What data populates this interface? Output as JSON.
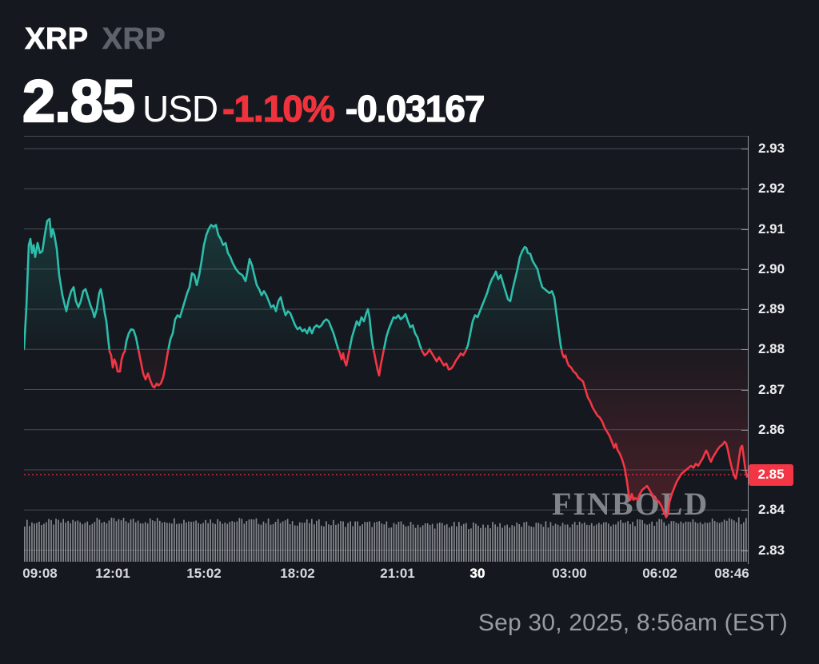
{
  "header": {
    "ticker": "XRP",
    "ticker_secondary": "XRP",
    "price": "2.85",
    "currency": "USD",
    "change_percent": "-1.10%",
    "change_absolute": "-0.03167",
    "change_color": "#f0323d"
  },
  "watermark": "FINBOLD",
  "footer": {
    "timestamp": "Sep 30, 2025, 8:56am (EST)"
  },
  "chart_data": {
    "type": "line",
    "subtype": "baseline-area",
    "title": "XRP/USD intraday price",
    "baseline_value": 2.88,
    "ylim": [
      2.8267,
      2.9332
    ],
    "grid": true,
    "y_axis_side": "right",
    "y_ticks": [
      2.93,
      2.92,
      2.91,
      2.9,
      2.89,
      2.88,
      2.87,
      2.86,
      2.85,
      2.84,
      2.83
    ],
    "x_ticks": [
      {
        "label": "09:08",
        "pos": 20,
        "emphasis": false
      },
      {
        "label": "12:01",
        "pos": 111,
        "emphasis": false
      },
      {
        "label": "15:02",
        "pos": 225,
        "emphasis": false
      },
      {
        "label": "18:02",
        "pos": 342,
        "emphasis": false
      },
      {
        "label": "21:01",
        "pos": 467,
        "emphasis": false
      },
      {
        "label": "30",
        "pos": 567,
        "emphasis": true
      },
      {
        "label": "03:00",
        "pos": 682,
        "emphasis": false
      },
      {
        "label": "06:02",
        "pos": 795,
        "emphasis": false
      },
      {
        "label": "08:46",
        "pos": 885,
        "emphasis": false
      }
    ],
    "current_price_value": 2.8488,
    "current_price_label": "2.85",
    "colors": {
      "up": "#2dbdab",
      "down": "#f23645",
      "grid": "#474c54",
      "axis": "#8f939a",
      "badge": "#f23645",
      "volume": "#c8cbd0",
      "watermark": "#94979c"
    },
    "volume_bar_count": 300,
    "points": [
      [
        0,
        2.88
      ],
      [
        3,
        2.8905
      ],
      [
        6,
        2.906
      ],
      [
        8,
        2.9075
      ],
      [
        10,
        2.904
      ],
      [
        12,
        2.906
      ],
      [
        14,
        2.903
      ],
      [
        17,
        2.9065
      ],
      [
        20,
        2.904
      ],
      [
        23,
        2.9045
      ],
      [
        26,
        2.9085
      ],
      [
        29,
        2.912
      ],
      [
        32,
        2.9125
      ],
      [
        34,
        2.908
      ],
      [
        36,
        2.91
      ],
      [
        38,
        2.9085
      ],
      [
        41,
        2.905
      ],
      [
        44,
        2.8985
      ],
      [
        48,
        2.8935
      ],
      [
        51,
        2.891
      ],
      [
        53,
        2.8895
      ],
      [
        56,
        2.8925
      ],
      [
        59,
        2.8945
      ],
      [
        62,
        2.8955
      ],
      [
        65,
        2.892
      ],
      [
        68,
        2.8905
      ],
      [
        71,
        2.892
      ],
      [
        74,
        2.8945
      ],
      [
        77,
        2.895
      ],
      [
        80,
        2.893
      ],
      [
        83,
        2.891
      ],
      [
        86,
        2.8895
      ],
      [
        88,
        2.888
      ],
      [
        91,
        2.89
      ],
      [
        94,
        2.894
      ],
      [
        96,
        2.895
      ],
      [
        99,
        2.892
      ],
      [
        101,
        2.889
      ],
      [
        103,
        2.887
      ],
      [
        105,
        2.883
      ],
      [
        107,
        2.8795
      ],
      [
        109,
        2.8785
      ],
      [
        111,
        2.8755
      ],
      [
        113,
        2.8775
      ],
      [
        115,
        2.8765
      ],
      [
        117,
        2.8745
      ],
      [
        120,
        2.8745
      ],
      [
        122,
        2.8775
      ],
      [
        124,
        2.8788
      ],
      [
        126,
        2.8795
      ],
      [
        128,
        2.882
      ],
      [
        131,
        2.884
      ],
      [
        134,
        2.885
      ],
      [
        137,
        2.8848
      ],
      [
        140,
        2.883
      ],
      [
        143,
        2.88
      ],
      [
        146,
        2.877
      ],
      [
        149,
        2.874
      ],
      [
        152,
        2.8725
      ],
      [
        155,
        2.874
      ],
      [
        158,
        2.8722
      ],
      [
        161,
        2.8708
      ],
      [
        163,
        2.8705
      ],
      [
        166,
        2.8715
      ],
      [
        168,
        2.871
      ],
      [
        171,
        2.8715
      ],
      [
        174,
        2.873
      ],
      [
        177,
        2.876
      ],
      [
        180,
        2.8795
      ],
      [
        183,
        2.8825
      ],
      [
        186,
        2.884
      ],
      [
        189,
        2.8875
      ],
      [
        192,
        2.8885
      ],
      [
        195,
        2.888
      ],
      [
        198,
        2.89
      ],
      [
        201,
        2.892
      ],
      [
        204,
        2.894
      ],
      [
        207,
        2.8955
      ],
      [
        210,
        2.899
      ],
      [
        213,
        2.8985
      ],
      [
        216,
        2.896
      ],
      [
        219,
        2.8985
      ],
      [
        222,
        2.902
      ],
      [
        225,
        2.906
      ],
      [
        228,
        2.9085
      ],
      [
        231,
        2.91
      ],
      [
        234,
        2.911
      ],
      [
        237,
        2.9105
      ],
      [
        240,
        2.911
      ],
      [
        243,
        2.9085
      ],
      [
        246,
        2.9075
      ],
      [
        249,
        2.906
      ],
      [
        252,
        2.9065
      ],
      [
        255,
        2.904
      ],
      [
        258,
        2.903
      ],
      [
        261,
        2.9015
      ],
      [
        265,
        2.9
      ],
      [
        269,
        2.899
      ],
      [
        273,
        2.8985
      ],
      [
        277,
        2.897
      ],
      [
        279,
        2.899
      ],
      [
        282,
        2.9025
      ],
      [
        285,
        2.901
      ],
      [
        288,
        2.8985
      ],
      [
        291,
        2.896
      ],
      [
        294,
        2.895
      ],
      [
        297,
        2.8935
      ],
      [
        300,
        2.8945
      ],
      [
        303,
        2.8935
      ],
      [
        306,
        2.892
      ],
      [
        309,
        2.8905
      ],
      [
        312,
        2.891
      ],
      [
        315,
        2.8895
      ],
      [
        318,
        2.892
      ],
      [
        321,
        2.893
      ],
      [
        324,
        2.8905
      ],
      [
        327,
        2.8885
      ],
      [
        330,
        2.8895
      ],
      [
        333,
        2.889
      ],
      [
        336,
        2.8875
      ],
      [
        339,
        2.886
      ],
      [
        342,
        2.885
      ],
      [
        345,
        2.8855
      ],
      [
        348,
        2.8845
      ],
      [
        351,
        2.885
      ],
      [
        354,
        2.884
      ],
      [
        357,
        2.8855
      ],
      [
        360,
        2.884
      ],
      [
        363,
        2.8855
      ],
      [
        366,
        2.886
      ],
      [
        369,
        2.8855
      ],
      [
        372,
        2.886
      ],
      [
        375,
        2.887
      ],
      [
        378,
        2.8875
      ],
      [
        381,
        2.887
      ],
      [
        384,
        2.8855
      ],
      [
        387,
        2.884
      ],
      [
        390,
        2.882
      ],
      [
        393,
        2.88
      ],
      [
        395,
        2.879
      ],
      [
        397,
        2.8775
      ],
      [
        399,
        2.879
      ],
      [
        401,
        2.877
      ],
      [
        403,
        2.876
      ],
      [
        405,
        2.878
      ],
      [
        407,
        2.88
      ],
      [
        410,
        2.883
      ],
      [
        413,
        2.885
      ],
      [
        416,
        2.887
      ],
      [
        419,
        2.886
      ],
      [
        422,
        2.888
      ],
      [
        425,
        2.887
      ],
      [
        428,
        2.889
      ],
      [
        430,
        2.89
      ],
      [
        432,
        2.888
      ],
      [
        434,
        2.884
      ],
      [
        436,
        2.881
      ],
      [
        438,
        2.879
      ],
      [
        440,
        2.877
      ],
      [
        442,
        2.875
      ],
      [
        444,
        2.8735
      ],
      [
        446,
        2.876
      ],
      [
        448,
        2.878
      ],
      [
        450,
        2.88
      ],
      [
        453,
        2.883
      ],
      [
        456,
        2.885
      ],
      [
        459,
        2.8865
      ],
      [
        462,
        2.888
      ],
      [
        465,
        2.8878
      ],
      [
        468,
        2.8885
      ],
      [
        471,
        2.8875
      ],
      [
        474,
        2.888
      ],
      [
        477,
        2.8888
      ],
      [
        480,
        2.887
      ],
      [
        483,
        2.8855
      ],
      [
        486,
        2.886
      ],
      [
        489,
        2.884
      ],
      [
        492,
        2.883
      ],
      [
        495,
        2.881
      ],
      [
        498,
        2.8795
      ],
      [
        501,
        2.8785
      ],
      [
        504,
        2.879
      ],
      [
        507,
        2.88
      ],
      [
        510,
        2.879
      ],
      [
        513,
        2.878
      ],
      [
        516,
        2.877
      ],
      [
        519,
        2.878
      ],
      [
        522,
        2.877
      ],
      [
        525,
        2.876
      ],
      [
        528,
        2.8765
      ],
      [
        531,
        2.875
      ],
      [
        534,
        2.8752
      ],
      [
        537,
        2.876
      ],
      [
        540,
        2.8772
      ],
      [
        543,
        2.878
      ],
      [
        546,
        2.879
      ],
      [
        549,
        2.8785
      ],
      [
        552,
        2.8795
      ],
      [
        555,
        2.881
      ],
      [
        558,
        2.884
      ],
      [
        561,
        2.887
      ],
      [
        564,
        2.8885
      ],
      [
        567,
        2.888
      ],
      [
        570,
        2.8895
      ],
      [
        573,
        2.891
      ],
      [
        576,
        2.8925
      ],
      [
        579,
        2.894
      ],
      [
        582,
        2.896
      ],
      [
        585,
        2.8975
      ],
      [
        588,
        2.8985
      ],
      [
        590,
        2.8994
      ],
      [
        593,
        2.8975
      ],
      [
        596,
        2.8985
      ],
      [
        599,
        2.8965
      ],
      [
        602,
        2.8945
      ],
      [
        605,
        2.8925
      ],
      [
        608,
        2.892
      ],
      [
        611,
        2.895
      ],
      [
        614,
        2.8975
      ],
      [
        617,
        2.9
      ],
      [
        620,
        2.903
      ],
      [
        623,
        2.9045
      ],
      [
        626,
        2.9055
      ],
      [
        628,
        2.9053
      ],
      [
        630,
        2.904
      ],
      [
        633,
        2.9038
      ],
      [
        636,
        2.902
      ],
      [
        639,
        2.901
      ],
      [
        642,
        2.9
      ],
      [
        645,
        2.8975
      ],
      [
        648,
        2.8955
      ],
      [
        651,
        2.895
      ],
      [
        654,
        2.8945
      ],
      [
        657,
        2.894
      ],
      [
        660,
        2.8945
      ],
      [
        663,
        2.893
      ],
      [
        665,
        2.89
      ],
      [
        667,
        2.887
      ],
      [
        669,
        2.884
      ],
      [
        671,
        2.881
      ],
      [
        673,
        2.879
      ],
      [
        675,
        2.878
      ],
      [
        677,
        2.8785
      ],
      [
        679,
        2.877
      ],
      [
        681,
        2.876
      ],
      [
        684,
        2.8755
      ],
      [
        687,
        2.8745
      ],
      [
        690,
        2.874
      ],
      [
        693,
        2.873
      ],
      [
        696,
        2.8725
      ],
      [
        699,
        2.872
      ],
      [
        702,
        2.87
      ],
      [
        705,
        2.868
      ],
      [
        708,
        2.867
      ],
      [
        711,
        2.8655
      ],
      [
        714,
        2.8645
      ],
      [
        717,
        2.8635
      ],
      [
        720,
        2.863
      ],
      [
        723,
        2.862
      ],
      [
        726,
        2.8605
      ],
      [
        729,
        2.8595
      ],
      [
        732,
        2.8585
      ],
      [
        735,
        2.857
      ],
      [
        738,
        2.8555
      ],
      [
        740,
        2.8565
      ],
      [
        742,
        2.855
      ],
      [
        745,
        2.854
      ],
      [
        748,
        2.8525
      ],
      [
        751,
        2.8505
      ],
      [
        754,
        2.847
      ],
      [
        756,
        2.844
      ],
      [
        758,
        2.8425
      ],
      [
        760,
        2.844
      ],
      [
        762,
        2.8425
      ],
      [
        764,
        2.843
      ],
      [
        767,
        2.8425
      ],
      [
        770,
        2.844
      ],
      [
        773,
        2.845
      ],
      [
        776,
        2.8455
      ],
      [
        779,
        2.846
      ],
      [
        782,
        2.845
      ],
      [
        785,
        2.844
      ],
      [
        788,
        2.843
      ],
      [
        791,
        2.8425
      ],
      [
        794,
        2.842
      ],
      [
        797,
        2.841
      ],
      [
        800,
        2.8395
      ],
      [
        803,
        2.8382
      ],
      [
        805,
        2.839
      ],
      [
        807,
        2.842
      ],
      [
        810,
        2.844
      ],
      [
        813,
        2.8455
      ],
      [
        816,
        2.847
      ],
      [
        819,
        2.848
      ],
      [
        822,
        2.849
      ],
      [
        825,
        2.8495
      ],
      [
        828,
        2.85
      ],
      [
        831,
        2.8505
      ],
      [
        834,
        2.851
      ],
      [
        837,
        2.8505
      ],
      [
        840,
        2.8515
      ],
      [
        843,
        2.851
      ],
      [
        846,
        2.852
      ],
      [
        849,
        2.853
      ],
      [
        851,
        2.854
      ],
      [
        853,
        2.8548
      ],
      [
        855,
        2.854
      ],
      [
        857,
        2.8528
      ],
      [
        859,
        2.852
      ],
      [
        861,
        2.853
      ],
      [
        864,
        2.854
      ],
      [
        867,
        2.855
      ],
      [
        870,
        2.8558
      ],
      [
        873,
        2.8562
      ],
      [
        876,
        2.857
      ],
      [
        878,
        2.8565
      ],
      [
        880,
        2.855
      ],
      [
        882,
        2.853
      ],
      [
        885,
        2.8505
      ],
      [
        888,
        2.8485
      ],
      [
        890,
        2.8478
      ],
      [
        892,
        2.85
      ],
      [
        894,
        2.853
      ],
      [
        896,
        2.8555
      ],
      [
        898,
        2.856
      ],
      [
        900,
        2.853
      ],
      [
        902,
        2.85
      ],
      [
        904,
        2.8483
      ],
      [
        905,
        2.8488
      ]
    ]
  }
}
